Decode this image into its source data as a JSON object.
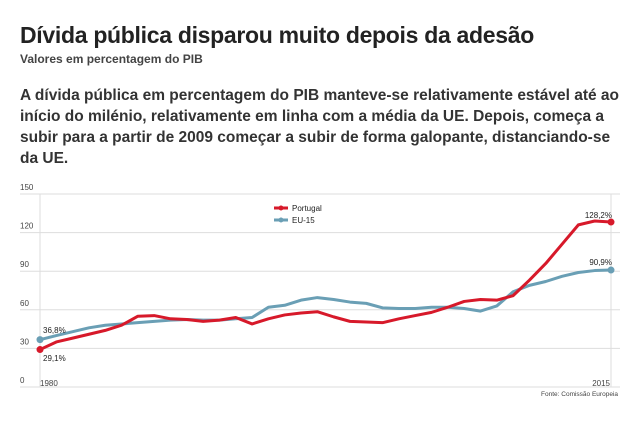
{
  "header": {
    "title": "Dívida pública disparou muito depois da adesão",
    "subtitle": "Valores em percentagem do PIB",
    "lead": "A dívida pública em percentagem do PIB manteve-se relativamente estável até ao início do milénio, relativamente em linha com a média da UE. Depois, começa a subir para a partir de 2009 começar a subir de forma galopante, distanciando-se da UE."
  },
  "chart_data": {
    "type": "line",
    "title": "Dívida pública disparou muito depois da adesão",
    "xlabel": "",
    "ylabel": "",
    "ylim": [
      0,
      150
    ],
    "yticks": [
      "0",
      "30",
      "60",
      "90",
      "120",
      "150"
    ],
    "xtick_labels": [
      "1980",
      "2015"
    ],
    "x": [
      1980,
      1981,
      1982,
      1983,
      1984,
      1985,
      1986,
      1987,
      1988,
      1989,
      1990,
      1991,
      1992,
      1993,
      1994,
      1995,
      1996,
      1997,
      1998,
      1999,
      2000,
      2001,
      2002,
      2003,
      2004,
      2005,
      2006,
      2007,
      2008,
      2009,
      2010,
      2011,
      2012,
      2013,
      2014,
      2015
    ],
    "series": [
      {
        "name": "Portugal",
        "color": "#d7192a",
        "values": [
          29.1,
          35,
          38,
          41,
          44,
          48,
          55,
          55.5,
          53,
          52.5,
          51,
          52,
          54,
          49,
          53,
          56,
          57.5,
          58.5,
          54.5,
          51,
          50.5,
          50,
          53,
          55.5,
          58,
          62,
          66.5,
          68,
          67.5,
          71,
          83,
          96,
          111,
          126,
          129,
          128.2
        ]
      },
      {
        "name": "EU-15",
        "color": "#6a9fb5",
        "values": [
          36.8,
          40,
          43,
          46,
          48,
          49,
          50,
          51,
          52,
          52.5,
          52,
          52,
          53,
          54,
          62,
          63.5,
          67.5,
          69.5,
          68,
          66,
          65,
          61.5,
          61,
          61,
          62,
          62,
          61,
          59,
          63,
          74,
          79,
          82,
          86,
          89,
          90.5,
          90.9
        ]
      }
    ],
    "annotations": [
      "36,8%",
      "29,1%",
      "128,2%",
      "90,9%"
    ],
    "legend_position": "top-center",
    "grid": true,
    "source": "Fonte: Comissão Europeia"
  }
}
